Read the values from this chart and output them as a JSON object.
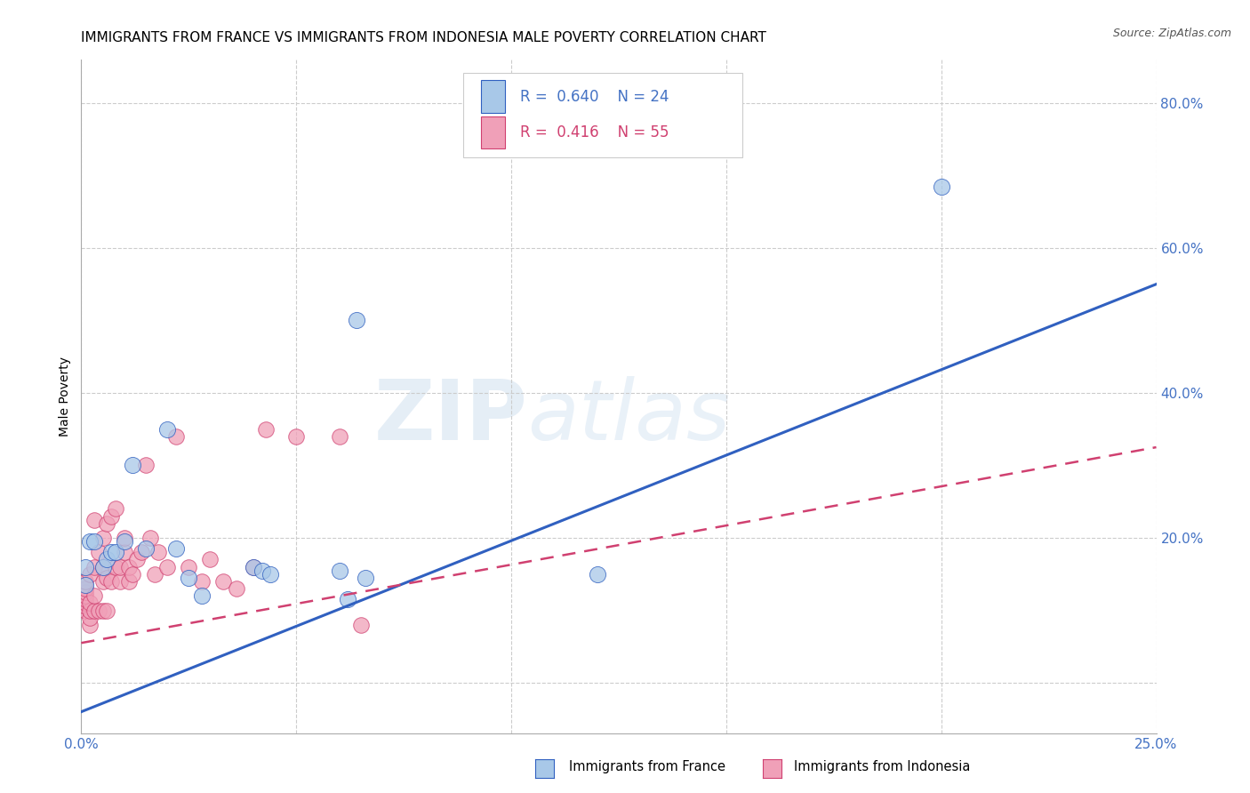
{
  "title": "IMMIGRANTS FROM FRANCE VS IMMIGRANTS FROM INDONESIA MALE POVERTY CORRELATION CHART",
  "source": "Source: ZipAtlas.com",
  "ylabel_left": "Male Poverty",
  "x_min": 0.0,
  "x_max": 0.25,
  "y_min": -0.07,
  "y_max": 0.86,
  "yticks_right": [
    0.0,
    0.2,
    0.4,
    0.6,
    0.8
  ],
  "ytick_labels_right": [
    "",
    "20.0%",
    "40.0%",
    "60.0%",
    "80.0%"
  ],
  "xticks": [
    0.0,
    0.05,
    0.1,
    0.15,
    0.2,
    0.25
  ],
  "xtick_labels": [
    "0.0%",
    "",
    "",
    "",
    "",
    "25.0%"
  ],
  "france_color": "#a8c8e8",
  "france_line_color": "#3060c0",
  "indonesia_color": "#f0a0b8",
  "indonesia_line_color": "#d04070",
  "france_R": 0.64,
  "france_N": 24,
  "indonesia_R": 0.416,
  "indonesia_N": 55,
  "france_line_intercept": -0.04,
  "france_line_slope": 2.36,
  "indonesia_line_intercept": 0.055,
  "indonesia_line_slope": 1.08,
  "title_fontsize": 11,
  "axis_label_fontsize": 10,
  "tick_fontsize": 11,
  "legend_fontsize": 12,
  "source_fontsize": 9,
  "axis_color": "#4472c4",
  "grid_color": "#cccccc",
  "background_color": "#ffffff",
  "france_scatter_x": [
    0.001,
    0.001,
    0.002,
    0.003,
    0.005,
    0.006,
    0.007,
    0.008,
    0.01,
    0.012,
    0.015,
    0.02,
    0.022,
    0.025,
    0.028,
    0.04,
    0.042,
    0.044,
    0.06,
    0.062,
    0.064,
    0.066,
    0.12,
    0.2
  ],
  "france_scatter_y": [
    0.135,
    0.16,
    0.195,
    0.195,
    0.16,
    0.17,
    0.18,
    0.18,
    0.195,
    0.3,
    0.185,
    0.35,
    0.185,
    0.145,
    0.12,
    0.16,
    0.155,
    0.15,
    0.155,
    0.115,
    0.5,
    0.145,
    0.15,
    0.685
  ],
  "indonesia_scatter_x": [
    0.001,
    0.001,
    0.001,
    0.001,
    0.001,
    0.001,
    0.001,
    0.001,
    0.002,
    0.002,
    0.002,
    0.002,
    0.002,
    0.003,
    0.003,
    0.003,
    0.003,
    0.004,
    0.004,
    0.005,
    0.005,
    0.005,
    0.005,
    0.006,
    0.006,
    0.006,
    0.007,
    0.007,
    0.008,
    0.008,
    0.009,
    0.009,
    0.01,
    0.01,
    0.011,
    0.011,
    0.012,
    0.013,
    0.014,
    0.015,
    0.016,
    0.017,
    0.018,
    0.02,
    0.022,
    0.025,
    0.028,
    0.03,
    0.033,
    0.036,
    0.04,
    0.043,
    0.05,
    0.06,
    0.065
  ],
  "indonesia_scatter_y": [
    0.1,
    0.105,
    0.11,
    0.115,
    0.12,
    0.125,
    0.13,
    0.14,
    0.08,
    0.09,
    0.1,
    0.11,
    0.15,
    0.1,
    0.12,
    0.16,
    0.225,
    0.1,
    0.18,
    0.1,
    0.14,
    0.16,
    0.2,
    0.1,
    0.145,
    0.22,
    0.14,
    0.23,
    0.16,
    0.24,
    0.14,
    0.16,
    0.18,
    0.2,
    0.14,
    0.16,
    0.15,
    0.17,
    0.18,
    0.3,
    0.2,
    0.15,
    0.18,
    0.16,
    0.34,
    0.16,
    0.14,
    0.17,
    0.14,
    0.13,
    0.16,
    0.35,
    0.34,
    0.34,
    0.08
  ]
}
